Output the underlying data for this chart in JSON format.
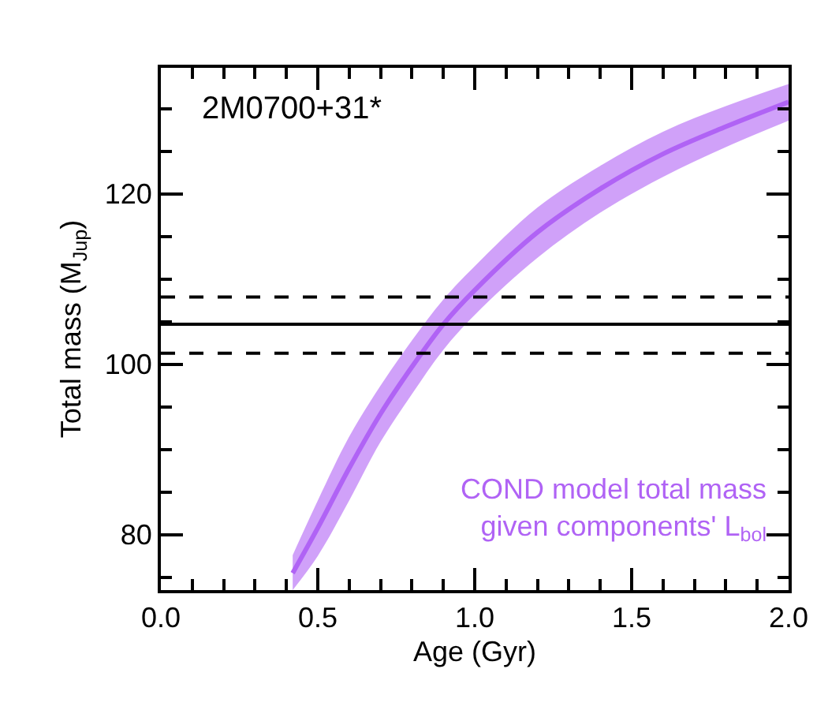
{
  "chart_data": {
    "type": "line",
    "title": "2M0700+31*",
    "xlabel": "Age (Gyr)",
    "ylabel": "Total mass (M$_{Jup}$)",
    "x": [
      0.42,
      0.5,
      0.6,
      0.7,
      0.8,
      0.9,
      1.0,
      1.2,
      1.4,
      1.6,
      1.8,
      2.0
    ],
    "series": [
      {
        "name": "COND model total mass\ngiven components' L$_{bol}$",
        "color": "#b063f5",
        "values": [
          75.5,
          80.8,
          87.8,
          94.2,
          99.7,
          104.7,
          108.7,
          115.5,
          120.6,
          124.7,
          127.9,
          130.8
        ],
        "lower": [
          73.5,
          77.5,
          84,
          90.9,
          96.5,
          101.7,
          105.8,
          112.5,
          117.8,
          122,
          125.5,
          128.6
        ],
        "upper": [
          77.6,
          84,
          91.5,
          97.5,
          102.8,
          107.6,
          111.5,
          118.4,
          123.3,
          127.3,
          130.3,
          132.9
        ]
      }
    ],
    "ref_lines": [
      {
        "axis": "y",
        "value": 104.7,
        "color": "#000000",
        "line_style": "solid"
      },
      {
        "axis": "y",
        "value": 107.9,
        "color": "#000000",
        "line_style": "dashed"
      },
      {
        "axis": "y",
        "value": 101.3,
        "color": "#000000",
        "line_style": "dashed"
      }
    ],
    "xlim": [
      0,
      2
    ],
    "ylim": [
      73.5,
      134.8
    ],
    "xticks": [
      {
        "value": 0,
        "label": "0.0"
      },
      0.5,
      {
        "value": 1,
        "label": "1.0"
      },
      1.5,
      {
        "value": 2,
        "label": "2.0"
      },
      {
        "value": 0.1,
        "label": null
      },
      {
        "value": 0.2,
        "label": null
      },
      {
        "value": 0.3,
        "label": null
      },
      {
        "value": 0.4,
        "label": null
      },
      {
        "value": 0.6,
        "label": null
      },
      {
        "value": 0.7,
        "label": null
      },
      {
        "value": 0.8,
        "label": null
      },
      {
        "value": 0.9,
        "label": null
      },
      {
        "value": 1.1,
        "label": null
      },
      {
        "value": 1.2,
        "label": null
      },
      {
        "value": 1.3,
        "label": null
      },
      {
        "value": 1.4,
        "label": null
      },
      {
        "value": 1.6,
        "label": null
      },
      {
        "value": 1.7,
        "label": null
      },
      {
        "value": 1.8,
        "label": null
      },
      {
        "value": 1.9,
        "label": null
      }
    ],
    "yticks": [
      80,
      100,
      120,
      {
        "value": 75,
        "label": null
      },
      {
        "value": 85,
        "label": null
      },
      {
        "value": 90,
        "label": null
      },
      {
        "value": 95,
        "label": null
      },
      {
        "value": 105,
        "label": null
      },
      {
        "value": 110,
        "label": null
      },
      {
        "value": 115,
        "label": null
      },
      {
        "value": 125,
        "label": null
      },
      {
        "value": 130,
        "label": null
      }
    ],
    "grid": false,
    "legend": false,
    "marker": "none",
    "line_style": "solid"
  }
}
